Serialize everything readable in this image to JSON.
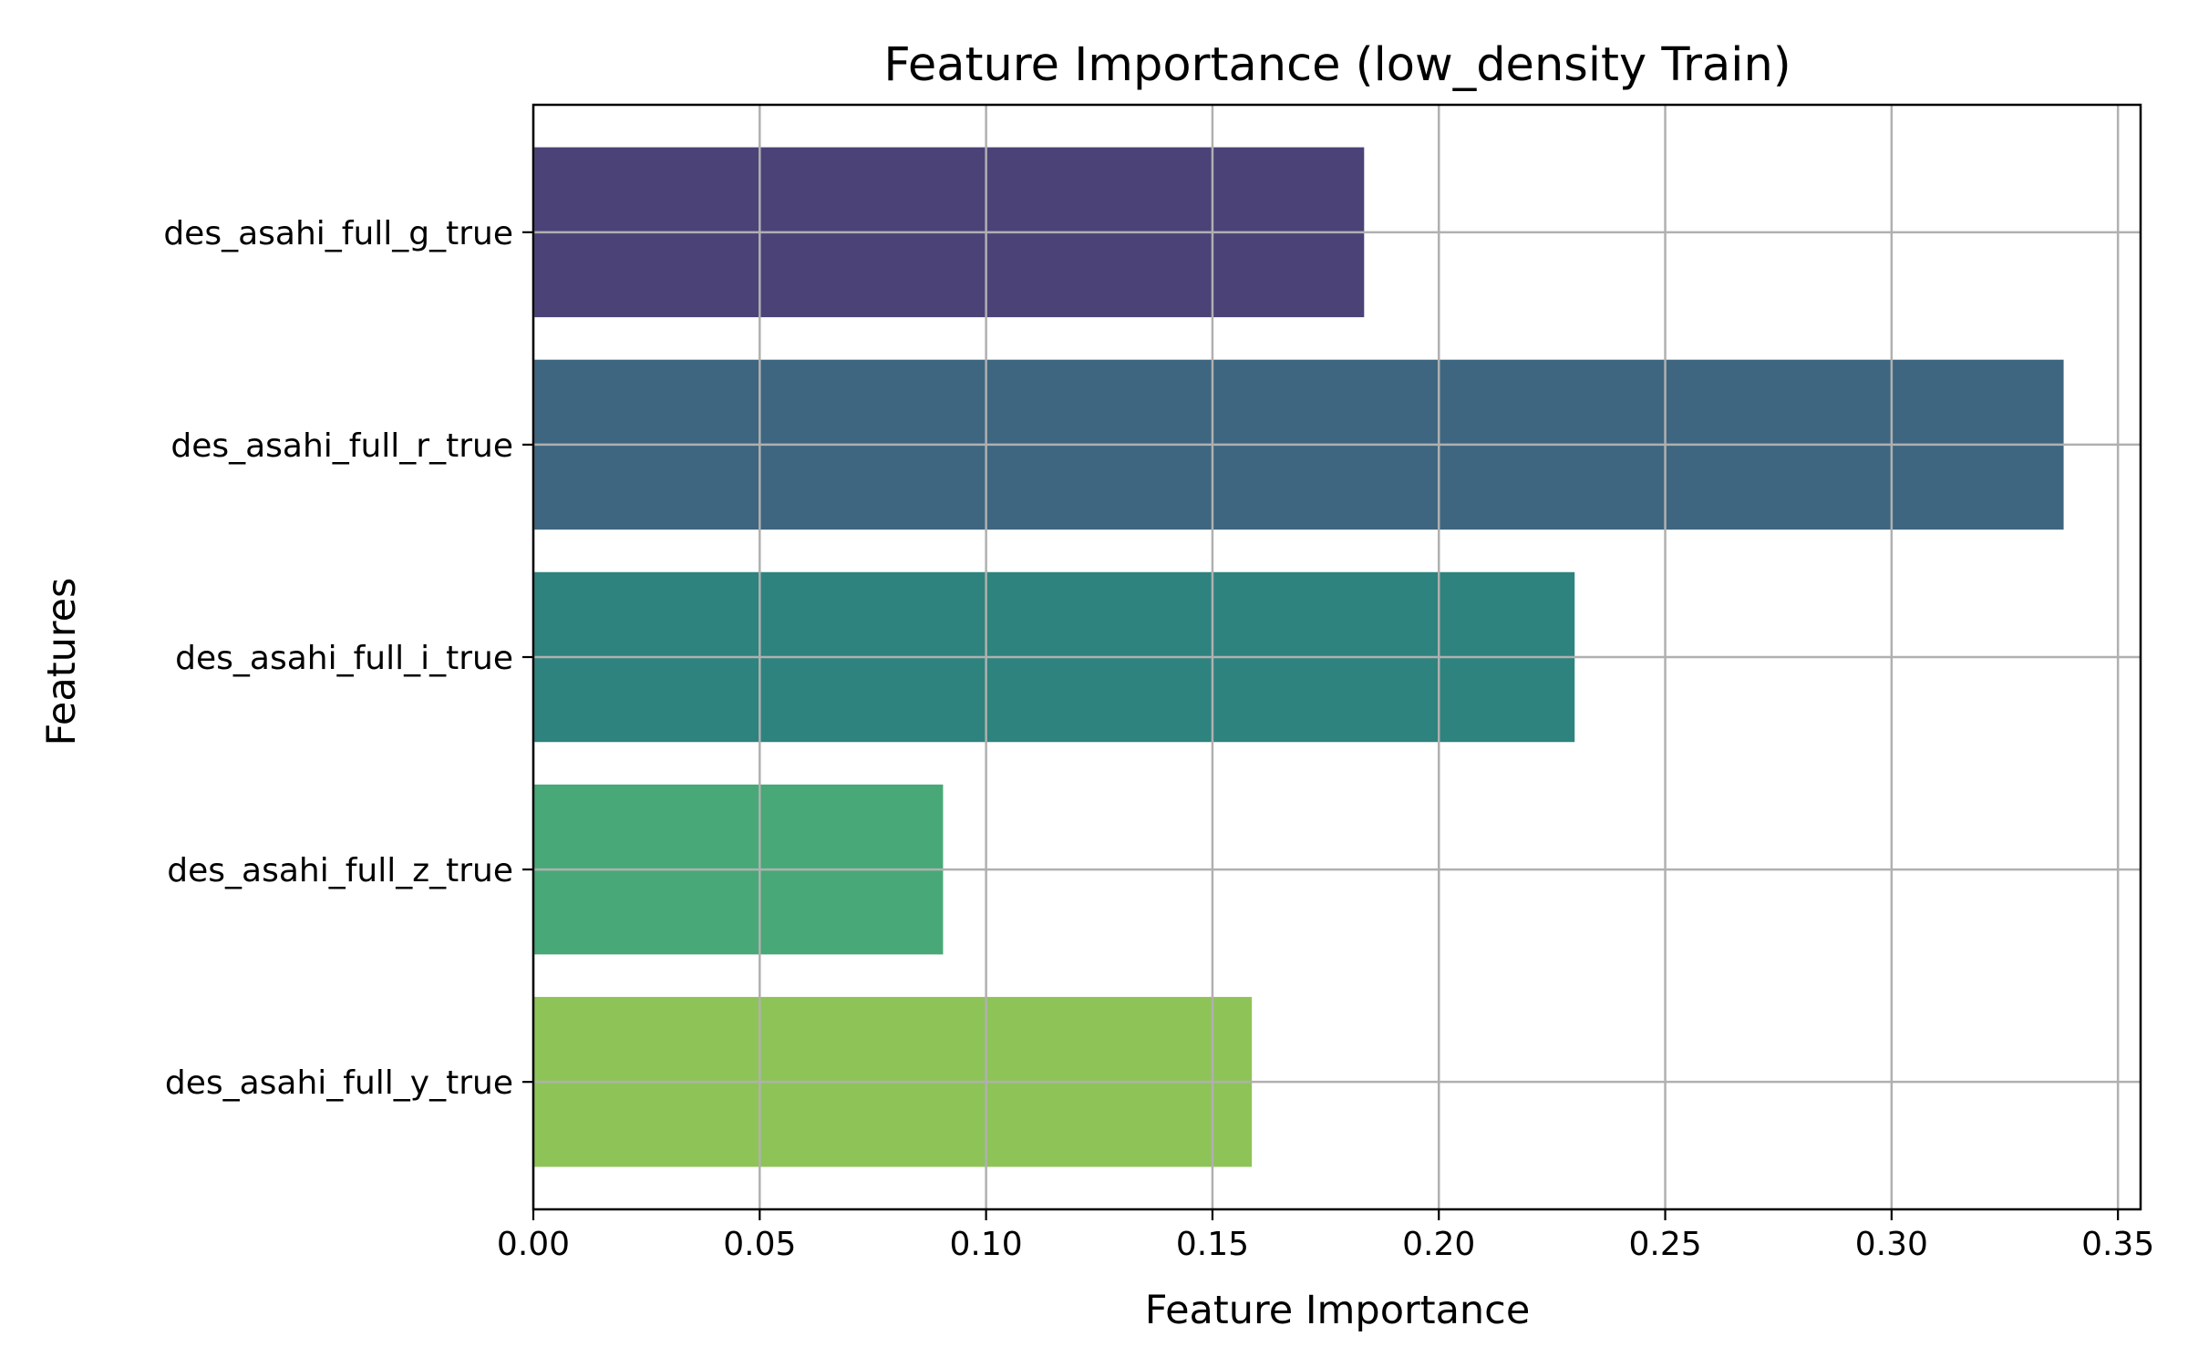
{
  "chart_data": {
    "type": "bar",
    "orientation": "horizontal",
    "title": "Feature Importance (low_density Train)",
    "xlabel": "Feature Importance",
    "ylabel": "Features",
    "categories": [
      "des_asahi_full_g_true",
      "des_asahi_full_r_true",
      "des_asahi_full_i_true",
      "des_asahi_full_z_true",
      "des_asahi_full_y_true"
    ],
    "values": [
      0.1835,
      0.338,
      0.23,
      0.0905,
      0.1587
    ],
    "colors": [
      "#4b4278",
      "#3e6680",
      "#2e837e",
      "#48a878",
      "#8ec457"
    ],
    "xlim": [
      0,
      0.355
    ],
    "xticks": [
      0.0,
      0.05,
      0.1,
      0.15,
      0.2,
      0.25,
      0.3,
      0.35
    ],
    "xtick_labels": [
      "0.00",
      "0.05",
      "0.10",
      "0.15",
      "0.20",
      "0.25",
      "0.30",
      "0.35"
    ],
    "grid": true
  }
}
